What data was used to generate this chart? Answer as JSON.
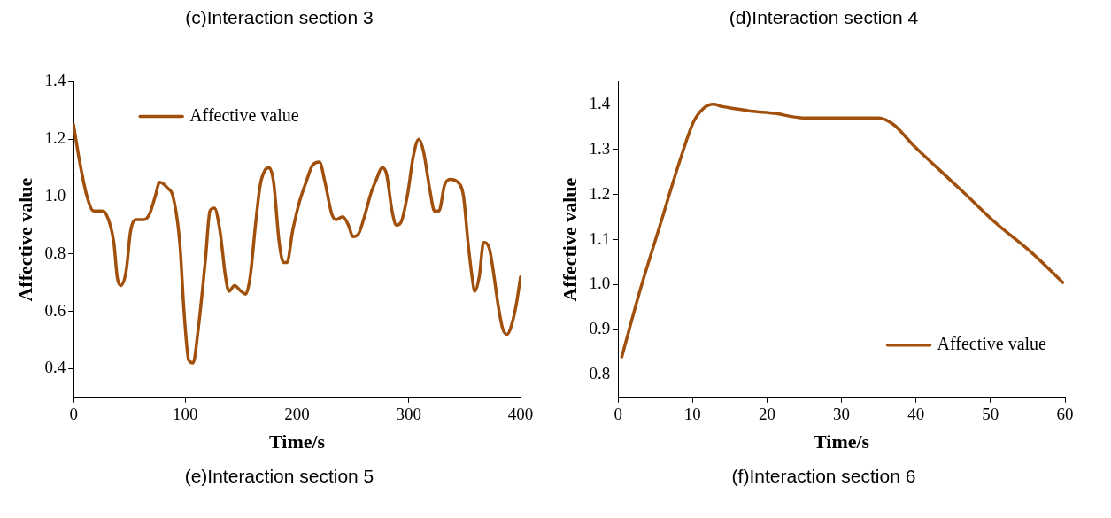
{
  "chart_data": [
    {
      "type": "line",
      "title": "(c)Interaction section 3",
      "annotations": [
        "(e)Interaction section 5"
      ],
      "xlabel": "Time/s",
      "ylabel": "Affective value",
      "xlim": [
        0,
        400
      ],
      "xticks": [
        0,
        100,
        200,
        300,
        400
      ],
      "ylim": [
        0.3,
        1.4
      ],
      "yticks": [
        0.4,
        0.6,
        0.8,
        {
          "value": 1,
          "label": "1.0"
        },
        1.2,
        1.4
      ],
      "grid": false,
      "legend": "top left",
      "marker": "none",
      "line_style": "solid",
      "series": [
        {
          "name": "Affective value",
          "color": "#a0500c",
          "x": [
            0,
            5,
            12,
            18,
            25,
            29,
            36,
            39,
            42,
            47,
            51,
            56,
            63,
            68,
            73,
            77,
            84,
            89,
            95,
            99,
            103,
            107,
            111,
            118,
            122,
            126,
            131,
            136,
            139,
            144,
            150,
            154,
            158,
            163,
            167,
            171,
            175,
            179,
            184,
            188,
            191,
            196,
            202,
            208,
            214,
            220,
            225,
            231,
            235,
            241,
            246,
            250,
            255,
            261,
            266,
            271,
            276,
            280,
            285,
            289,
            293,
            299,
            304,
            309,
            313,
            319,
            323,
            327,
            332,
            337,
            344,
            349,
            353,
            357,
            359,
            363,
            367,
            372,
            376,
            380,
            384,
            388,
            391,
            396,
            400
          ],
          "values": [
            1.25,
            1.13,
            1.0,
            0.95,
            0.95,
            0.94,
            0.84,
            0.72,
            0.69,
            0.74,
            0.88,
            0.92,
            0.92,
            0.94,
            1.0,
            1.05,
            1.03,
            1.0,
            0.84,
            0.59,
            0.43,
            0.42,
            0.52,
            0.78,
            0.95,
            0.96,
            0.88,
            0.72,
            0.67,
            0.69,
            0.67,
            0.66,
            0.72,
            0.91,
            1.04,
            1.09,
            1.1,
            1.05,
            0.84,
            0.77,
            0.77,
            0.88,
            0.98,
            1.05,
            1.11,
            1.12,
            1.05,
            0.94,
            0.92,
            0.93,
            0.9,
            0.86,
            0.87,
            0.94,
            1.01,
            1.06,
            1.1,
            1.08,
            0.95,
            0.9,
            0.91,
            1.01,
            1.14,
            1.2,
            1.16,
            1.02,
            0.95,
            0.95,
            1.04,
            1.06,
            1.05,
            1.0,
            0.84,
            0.71,
            0.67,
            0.72,
            0.84,
            0.82,
            0.73,
            0.62,
            0.54,
            0.52,
            0.54,
            0.62,
            0.72
          ]
        }
      ]
    },
    {
      "type": "line",
      "title": "(d)Interaction section 4",
      "annotations": [
        "(f)Interaction section 6"
      ],
      "xlabel": "Time/s",
      "ylabel": "Affective value",
      "xlim": [
        0,
        60
      ],
      "xticks": [
        0,
        10,
        20,
        30,
        40,
        50,
        60
      ],
      "ylim": [
        0.75,
        1.45
      ],
      "yticks": [
        0.8,
        0.9,
        {
          "value": 1,
          "label": "1.0"
        },
        1.1,
        1.2,
        1.3,
        1.4
      ],
      "grid": false,
      "legend": "bottom right",
      "marker": "none",
      "line_style": "solid",
      "series": [
        {
          "name": "Affective value",
          "color": "#a0500c",
          "x": [
            0.5,
            3,
            5.6,
            8.2,
            10.1,
            11.4,
            12.8,
            14,
            15.9,
            17.8,
            21,
            24.9,
            30,
            35,
            37,
            39.6,
            42.8,
            46.7,
            50.5,
            55.6,
            59.7
          ],
          "values": [
            0.84,
            0.99,
            1.13,
            1.27,
            1.36,
            1.39,
            1.4,
            1.395,
            1.39,
            1.385,
            1.38,
            1.37,
            1.37,
            1.37,
            1.355,
            1.31,
            1.26,
            1.2,
            1.14,
            1.07,
            1.005
          ]
        }
      ]
    }
  ]
}
